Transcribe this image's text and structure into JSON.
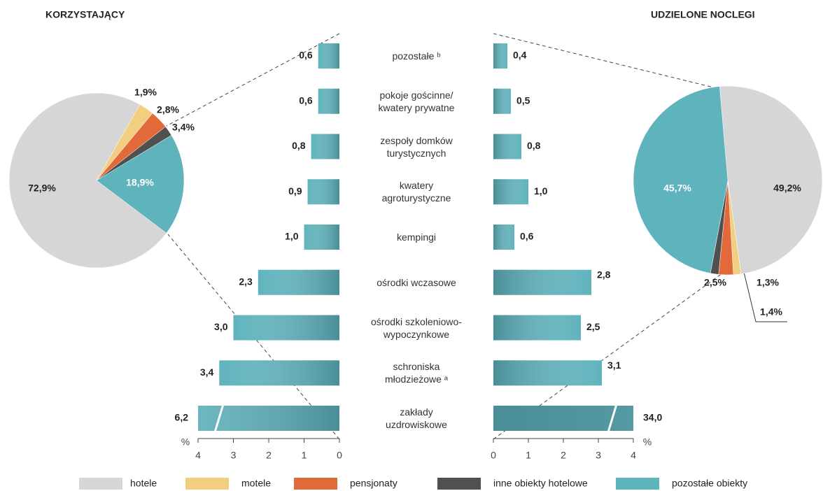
{
  "chart_data": [
    {
      "type": "pie",
      "title": "KORZYSTAJĄCY",
      "categories": [
        "hotele",
        "motele",
        "pensjonaty",
        "inne obiekty hotelowe",
        "pozostałe obiekty"
      ],
      "colors": [
        "#d6d6d6",
        "#f2cf80",
        "#e2693a",
        "#505050",
        "#5fb3bd"
      ],
      "values": [
        72.9,
        2.8,
        3.4,
        1.9,
        18.9
      ],
      "value_labels": [
        "72,9%",
        "2,8%",
        "3,4%",
        "1,9%",
        "18,9%"
      ]
    },
    {
      "type": "hbar",
      "categories": [
        "pozostałe ᵇ",
        "pokoje gościnne/\nkwatery prywatne",
        "zespoły domków\nturystycznych",
        "kwatery\nagroturystyczne",
        "kempingi",
        "ośrodki wczasowe",
        "ośrodki szkoleniowo-\nwypoczynkowe",
        "schroniska\nmłodzieżowe ᵃ",
        "zakłady\nuzdrowiskowe"
      ],
      "xlim": [
        0,
        4
      ],
      "xticks": [
        0,
        1,
        2,
        3,
        4
      ],
      "xlabel": "%",
      "series": [
        {
          "color": "#5fb3bd",
          "values": [
            0.6,
            0.6,
            0.8,
            0.9,
            1.0,
            2.3,
            3.0,
            3.4,
            6.2
          ],
          "value_labels": [
            "0,6",
            "0,6",
            "0,8",
            "0,9",
            "1,0",
            "2,3",
            "3,0",
            "3,4",
            "6,2"
          ]
        },
        {
          "color": "#5fb3bd",
          "values": [
            0.4,
            0.5,
            0.8,
            1.0,
            0.6,
            2.8,
            2.5,
            3.1,
            34.0
          ],
          "value_labels": [
            "0,4",
            "0,5",
            "0,8",
            "1,0",
            "0,6",
            "2,8",
            "2,5",
            "3,1",
            "34,0"
          ]
        }
      ]
    },
    {
      "type": "pie",
      "title": "UDZIELONE NOCLEGI",
      "values": [
        49.2,
        1.3,
        2.5,
        1.4,
        45.7
      ],
      "value_labels": [
        "49,2%",
        "1,3%",
        "2,5%",
        "1,4%",
        "45,7%"
      ]
    }
  ]
}
